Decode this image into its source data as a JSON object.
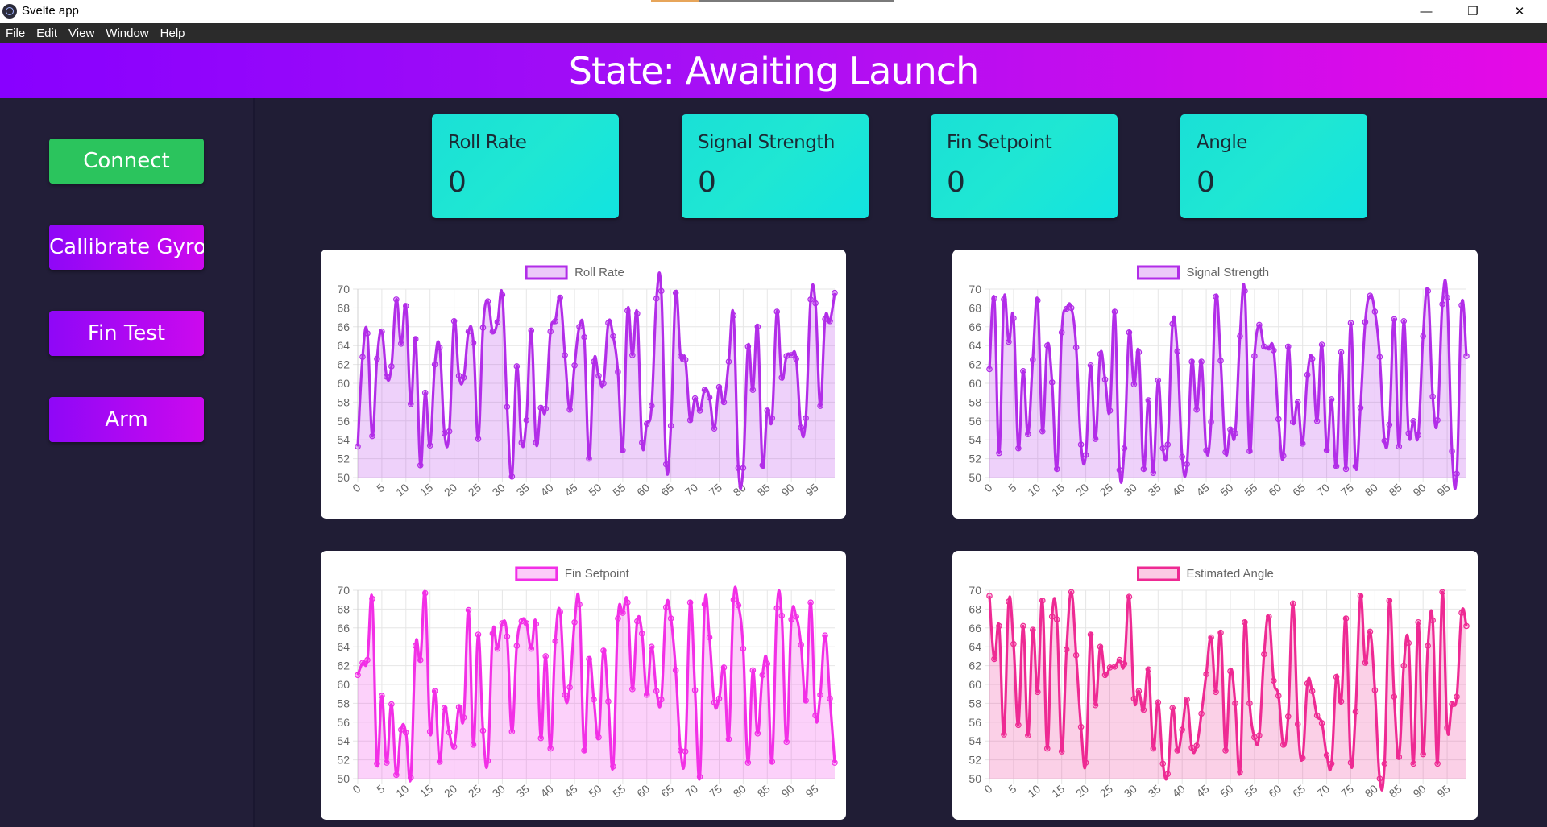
{
  "window": {
    "title": "Svelte app"
  },
  "menu": [
    "File",
    "Edit",
    "View",
    "Window",
    "Help"
  ],
  "header": {
    "state_text": "State: Awaiting Launch"
  },
  "sidebar": {
    "buttons": [
      {
        "label": "Connect",
        "color": "#2bc45d"
      },
      {
        "label": "Callibrate Gyro",
        "color": "#a90af3"
      },
      {
        "label": "Fin Test",
        "color": "#a90af3"
      },
      {
        "label": "Arm",
        "color": "#a90af3"
      }
    ]
  },
  "stats": [
    {
      "label": "Roll Rate",
      "value": "0"
    },
    {
      "label": "Signal Strength",
      "value": "0"
    },
    {
      "label": "Fin Setpoint",
      "value": "0"
    },
    {
      "label": "Angle",
      "value": "0"
    }
  ],
  "chart_data": [
    {
      "type": "line",
      "series_name": "Roll Rate",
      "color": "#b22de8",
      "ylim": [
        50,
        70
      ],
      "yticks": [
        50,
        52,
        54,
        56,
        58,
        60,
        62,
        64,
        66,
        68,
        70
      ],
      "xticks": [
        0,
        5,
        10,
        15,
        20,
        25,
        30,
        35,
        40,
        45,
        50,
        55,
        60,
        65,
        70,
        75,
        80,
        85,
        90,
        95
      ],
      "values": [
        53.3,
        62.8,
        65.3,
        54.4,
        62.6,
        65.5,
        60.7,
        61.8,
        68.9,
        64.2,
        68.2,
        57.8,
        64.7,
        51.3,
        59.0,
        53.4,
        62.0,
        63.8,
        54.7,
        54.9,
        66.6,
        60.8,
        60.6,
        65.5,
        64.3,
        54.1,
        65.9,
        68.7,
        65.5,
        66.5,
        69.4,
        57.5,
        50.1,
        61.8,
        53.7,
        56.1,
        65.6,
        53.7,
        57.4,
        57.3,
        65.5,
        66.6,
        69.1,
        63.0,
        57.2,
        61.9,
        66.0,
        64.9,
        52.0,
        62.3,
        60.8,
        60.0,
        66.4,
        65.0,
        61.2,
        52.9,
        67.7,
        63.0,
        67.4,
        53.7,
        55.7,
        57.6,
        69.0,
        69.8,
        51.4,
        55.5,
        69.6,
        62.9,
        62.5,
        56.1,
        58.4,
        57.1,
        59.3,
        58.5,
        55.2,
        59.6,
        58.0,
        62.3,
        67.2,
        51.0,
        51.0,
        63.9,
        59.3,
        66.0,
        51.3,
        57.1,
        56.3,
        67.6,
        60.6,
        62.9,
        63.0,
        62.6,
        55.3,
        56.3,
        68.9,
        68.5,
        57.6,
        66.8,
        66.6,
        69.6
      ]
    },
    {
      "type": "line",
      "series_name": "Signal Strength",
      "color": "#b22de8",
      "ylim": [
        50,
        70
      ],
      "yticks": [
        50,
        52,
        54,
        56,
        58,
        60,
        62,
        64,
        66,
        68,
        70
      ],
      "xticks": [
        0,
        5,
        10,
        15,
        20,
        25,
        30,
        35,
        40,
        45,
        50,
        55,
        60,
        65,
        70,
        75,
        80,
        85,
        90,
        95
      ],
      "values": [
        61.5,
        69.0,
        52.6,
        68.9,
        64.4,
        66.9,
        53.1,
        61.3,
        54.6,
        62.5,
        68.8,
        54.9,
        64.0,
        60.1,
        50.9,
        65.4,
        67.9,
        68.0,
        63.8,
        53.5,
        52.4,
        61.9,
        54.1,
        63.1,
        60.4,
        57.1,
        67.6,
        50.8,
        53.1,
        65.4,
        59.9,
        63.3,
        50.9,
        58.2,
        50.5,
        60.3,
        53.1,
        53.5,
        66.3,
        63.4,
        52.2,
        51.4,
        62.3,
        57.2,
        62.3,
        52.9,
        55.9,
        69.2,
        62.4,
        52.7,
        55.1,
        54.7,
        65.0,
        69.8,
        52.8,
        62.9,
        66.2,
        63.9,
        63.8,
        63.5,
        56.2,
        52.3,
        63.9,
        55.9,
        58.0,
        53.6,
        60.9,
        62.6,
        56.0,
        64.1,
        52.9,
        58.3,
        51.2,
        63.3,
        50.9,
        66.4,
        51.2,
        57.4,
        66.5,
        69.3,
        67.6,
        62.8,
        53.9,
        55.6,
        66.8,
        53.3,
        66.6,
        54.7,
        56.0,
        54.5,
        65.0,
        69.8,
        58.6,
        56.1,
        68.4,
        69.1,
        52.8,
        50.4,
        68.3,
        62.9
      ]
    },
    {
      "type": "line",
      "series_name": "Fin Setpoint",
      "color": "#f22fe6",
      "ylim": [
        50,
        70
      ],
      "yticks": [
        50,
        52,
        54,
        56,
        58,
        60,
        62,
        64,
        66,
        68,
        70
      ],
      "xticks": [
        0,
        5,
        10,
        15,
        20,
        25,
        30,
        35,
        40,
        45,
        50,
        55,
        60,
        65,
        70,
        75,
        80,
        85,
        90,
        95
      ],
      "values": [
        61.0,
        62.3,
        62.6,
        69.1,
        51.6,
        58.8,
        51.7,
        57.9,
        50.4,
        55.2,
        54.9,
        50.1,
        64.1,
        62.6,
        69.7,
        55.0,
        59.3,
        51.8,
        57.5,
        54.9,
        53.4,
        57.6,
        56.5,
        67.9,
        53.6,
        65.3,
        55.1,
        51.9,
        65.4,
        63.8,
        66.5,
        65.1,
        55.0,
        64.1,
        66.7,
        66.5,
        63.8,
        66.4,
        54.3,
        63.0,
        53.2,
        64.6,
        67.7,
        58.9,
        59.7,
        66.6,
        68.5,
        53.0,
        62.7,
        58.4,
        54.4,
        63.6,
        58.2,
        51.3,
        67.0,
        67.6,
        68.7,
        59.5,
        66.7,
        65.4,
        58.9,
        64.0,
        59.3,
        58.4,
        68.2,
        67.0,
        61.5,
        53.0,
        52.9,
        68.7,
        59.4,
        50.2,
        68.5,
        65.0,
        58.1,
        58.5,
        61.8,
        54.2,
        69.0,
        68.4,
        63.8,
        51.7,
        61.5,
        54.8,
        61.0,
        62.2,
        51.8,
        68.1,
        67.3,
        53.9,
        66.9,
        67.2,
        64.2,
        58.3,
        68.7,
        56.7,
        58.9,
        65.2,
        58.5,
        51.7
      ]
    },
    {
      "type": "line",
      "series_name": "Estimated Angle",
      "color": "#ee2a93",
      "ylim": [
        50,
        70
      ],
      "yticks": [
        50,
        52,
        54,
        56,
        58,
        60,
        62,
        64,
        66,
        68,
        70
      ],
      "xticks": [
        0,
        5,
        10,
        15,
        20,
        25,
        30,
        35,
        40,
        45,
        50,
        55,
        60,
        65,
        70,
        75,
        80,
        85,
        90,
        95
      ],
      "values": [
        69.4,
        62.7,
        66.2,
        54.7,
        68.8,
        64.3,
        55.7,
        66.2,
        54.6,
        65.8,
        59.2,
        68.9,
        53.2,
        67.2,
        66.9,
        52.9,
        63.7,
        69.8,
        63.1,
        55.5,
        51.7,
        65.3,
        57.8,
        64.0,
        61.0,
        61.8,
        61.9,
        62.6,
        62.2,
        69.3,
        58.5,
        59.3,
        57.3,
        61.6,
        53.2,
        58.1,
        51.6,
        50.5,
        57.5,
        53.0,
        55.2,
        58.4,
        53.3,
        53.5,
        56.9,
        61.1,
        65.0,
        59.2,
        65.5,
        53.0,
        61.4,
        58.0,
        50.7,
        66.6,
        58.0,
        54.4,
        54.6,
        63.2,
        67.2,
        60.4,
        58.8,
        53.6,
        56.6,
        68.6,
        55.8,
        52.2,
        60.1,
        59.3,
        56.7,
        55.9,
        52.5,
        51.6,
        60.8,
        58.2,
        67.0,
        51.7,
        57.1,
        69.4,
        62.3,
        65.6,
        59.4,
        50.0,
        51.6,
        68.9,
        58.7,
        52.3,
        62.0,
        64.4,
        51.6,
        66.6,
        52.6,
        64.1,
        66.8,
        51.6,
        69.8,
        55.4,
        57.9,
        58.7,
        67.6,
        66.2
      ]
    }
  ]
}
